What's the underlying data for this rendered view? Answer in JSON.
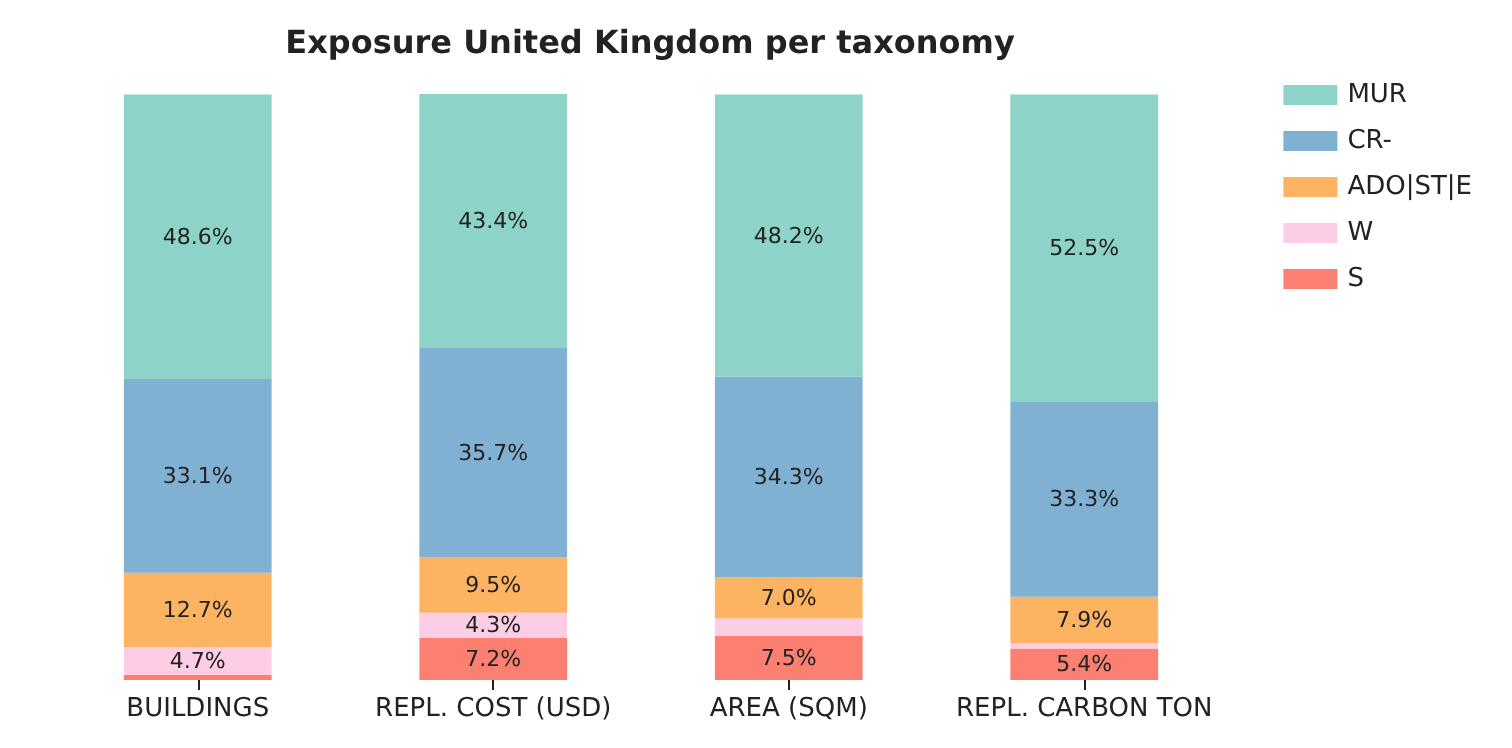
{
  "chart_data": {
    "type": "bar",
    "title": "Exposure United Kingdom per taxonomy",
    "stacked": true,
    "legend": "right",
    "categories": [
      "BUILDINGS",
      "REPL. COST (USD)",
      "AREA (SQM)",
      "REPL. CARBON TON"
    ],
    "series": [
      {
        "name": "S",
        "color": "#fb8072",
        "values": [
          0.9,
          7.2,
          7.5,
          5.4
        ],
        "value_labels": [
          null,
          "7.2%",
          "7.5%",
          "5.4%"
        ]
      },
      {
        "name": "W",
        "color": "#fccde5",
        "values": [
          4.7,
          4.3,
          3.0,
          0.9
        ],
        "value_labels": [
          "4.7%",
          "4.3%",
          null,
          null
        ]
      },
      {
        "name": "ADO|ST|E",
        "color": "#fdb462",
        "values": [
          12.7,
          9.5,
          7.0,
          7.9
        ],
        "value_labels": [
          "12.7%",
          "9.5%",
          "7.0%",
          "7.9%"
        ]
      },
      {
        "name": "CR-",
        "color": "#80b1d3",
        "values": [
          33.1,
          35.7,
          34.3,
          33.3
        ],
        "value_labels": [
          "33.1%",
          "35.7%",
          "34.3%",
          "33.3%"
        ]
      },
      {
        "name": "MUR",
        "color": "#8dd3c7",
        "values": [
          48.6,
          43.4,
          48.2,
          52.5
        ],
        "value_labels": [
          "48.6%",
          "43.4%",
          "48.2%",
          "52.5%"
        ]
      }
    ]
  }
}
